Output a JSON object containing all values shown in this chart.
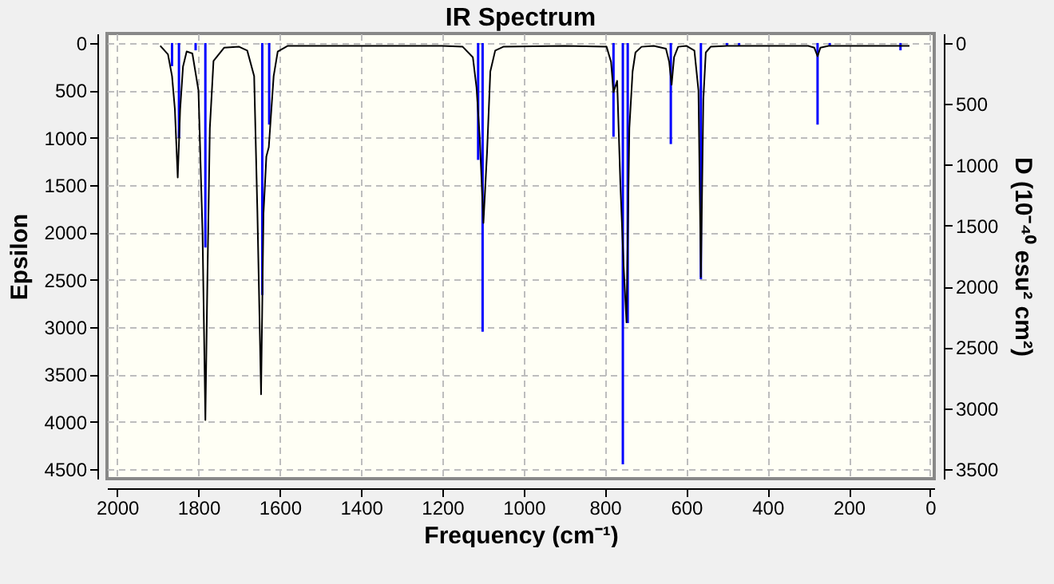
{
  "chart_data": {
    "type": "line",
    "title": "IR Spectrum",
    "xlabel": "Frequency (cm⁻¹)",
    "ylabel": "Epsilon",
    "y2label": "D (10⁻⁴⁰ esu² cm²)",
    "xlim": [
      2025,
      -10
    ],
    "xticks": [
      2000,
      1800,
      1600,
      1400,
      1200,
      1000,
      800,
      600,
      400,
      200,
      0
    ],
    "ylim": [
      4600,
      -100
    ],
    "yticks": [
      0,
      500,
      1000,
      1500,
      2000,
      2500,
      3000,
      3500,
      4000,
      4500
    ],
    "y2lim": [
      3578,
      -78
    ],
    "y2ticks": [
      0,
      500,
      1000,
      1500,
      2000,
      2500,
      3000,
      3500
    ],
    "grid": true,
    "marker": "none",
    "line_style": "solid",
    "series": [
      {
        "color": "#000000",
        "axis": "y",
        "x": [
          1894,
          1875,
          1865,
          1858,
          1851,
          1845,
          1838,
          1829,
          1815,
          1800,
          1790,
          1783,
          1778,
          1772,
          1763,
          1737,
          1700,
          1680,
          1663,
          1655,
          1646,
          1640,
          1633,
          1627,
          1615,
          1605,
          1580,
          1400,
          1200,
          1150,
          1125,
          1116,
          1108,
          1099,
          1090,
          1082,
          1070,
          1050,
          900,
          796,
          785,
          779,
          770,
          762,
          754,
          747,
          740,
          732,
          725,
          710,
          680,
          650,
          642,
          636,
          630,
          620,
          600,
          580,
          570,
          564,
          558,
          552,
          540,
          500,
          400,
          300,
          285,
          277,
          270,
          250,
          150,
          100,
          51
        ],
        "values": [
          30,
          120,
          350,
          700,
          1420,
          700,
          250,
          90,
          110,
          500,
          2000,
          3980,
          2500,
          900,
          190,
          50,
          40,
          80,
          350,
          1790,
          3710,
          1800,
          1200,
          1100,
          350,
          90,
          30,
          30,
          30,
          40,
          150,
          470,
          1000,
          1900,
          1150,
          300,
          80,
          40,
          30,
          40,
          200,
          520,
          400,
          1500,
          2360,
          2950,
          900,
          300,
          100,
          40,
          30,
          60,
          200,
          440,
          150,
          40,
          30,
          80,
          500,
          2470,
          600,
          100,
          40,
          30,
          30,
          30,
          50,
          140,
          50,
          30,
          30,
          30,
          30
        ]
      },
      {
        "type": "bar",
        "color": "#0000ff",
        "axis": "y2",
        "x": [
          1865,
          1848,
          1807,
          1783,
          1643,
          1626,
          1112,
          1101,
          779,
          756,
          744,
          638,
          564,
          500,
          470,
          277,
          247,
          73
        ],
        "values": [
          190,
          780,
          60,
          1680,
          2070,
          670,
          960,
          2370,
          770,
          3460,
          2300,
          830,
          1940,
          20,
          20,
          670,
          20,
          60
        ]
      }
    ]
  }
}
